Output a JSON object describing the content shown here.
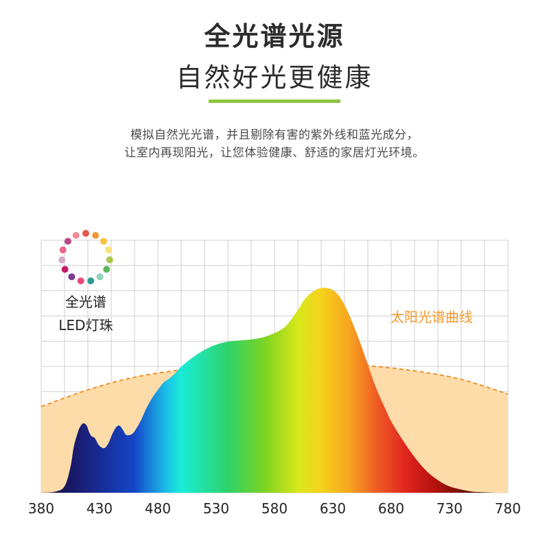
{
  "header": {
    "title_line1": "全光谱光源",
    "title_line2": "自然好光更健康",
    "accent_color": "#8dc63f"
  },
  "description": {
    "line1": "模拟自然光光谱，并且剔除有害的紫外线和蓝光成分，",
    "line2": "让室内再现阳光，让您体验健康、舒适的家居灯光环境。"
  },
  "legend": {
    "led_label_line1": "全光谱",
    "led_label_line2": "LED灯珠",
    "icon": "color-dots-ring-icon",
    "dot_colors": [
      "#e05a4a",
      "#f39a3a",
      "#f6c342",
      "#f7e27a",
      "#a7c94a",
      "#5cb85c",
      "#8fd3b8",
      "#2a9d8f",
      "#e84a7a",
      "#7a3d8f",
      "#c31c6a",
      "#d9a7c7",
      "#e8668a",
      "#b84a8a",
      "#f28a9a"
    ]
  },
  "chart_data": {
    "type": "area",
    "x_ticks": [
      380,
      430,
      480,
      530,
      580,
      630,
      680,
      730,
      780
    ],
    "xlim": [
      380,
      780
    ],
    "ylim": [
      0,
      100
    ],
    "grid": true,
    "series": [
      {
        "name": "太阳光谱曲线",
        "label_color": "#f29a2e",
        "line_color": "#f0932b",
        "fill_color": "#fddcaa",
        "style": "dashed",
        "x": [
          380,
          420,
          460,
          500,
          540,
          580,
          620,
          660,
          700,
          740,
          780
        ],
        "y": [
          41,
          49,
          55,
          58.5,
          60.5,
          61.5,
          61.5,
          60.5,
          58,
          54,
          47
        ]
      },
      {
        "name": "full-spectrum LED",
        "x": [
          380,
          392,
          400,
          405,
          408,
          411,
          413,
          416,
          419,
          421,
          423,
          426,
          429,
          432,
          435,
          438,
          441,
          444,
          447,
          450,
          453,
          458,
          462,
          466,
          470,
          475,
          480,
          485,
          490,
          495,
          500,
          510,
          520,
          530,
          540,
          550,
          560,
          570,
          580,
          590,
          600,
          605,
          610,
          615,
          620,
          625,
          630,
          635,
          640,
          645,
          650,
          655,
          660,
          665,
          670,
          675,
          680,
          690,
          700,
          710,
          720,
          730,
          740,
          750,
          760,
          770,
          780
        ],
        "y": [
          0,
          0.5,
          3,
          12,
          22,
          28,
          31,
          33,
          32,
          29,
          27,
          26,
          23,
          21.5,
          21.5,
          24,
          28,
          31,
          32,
          30,
          27.5,
          28,
          31,
          35,
          40,
          45,
          49,
          52.5,
          54.5,
          57,
          60,
          64.5,
          68,
          70.5,
          72,
          72.5,
          73,
          74,
          76,
          79.5,
          87,
          91.5,
          94.5,
          96.5,
          97.5,
          97.5,
          96.5,
          94,
          89.5,
          83.5,
          76.5,
          69,
          61,
          53,
          46,
          40,
          34,
          25,
          17,
          10.5,
          6,
          3,
          1.5,
          0.5,
          0.2,
          0,
          0
        ]
      }
    ]
  }
}
